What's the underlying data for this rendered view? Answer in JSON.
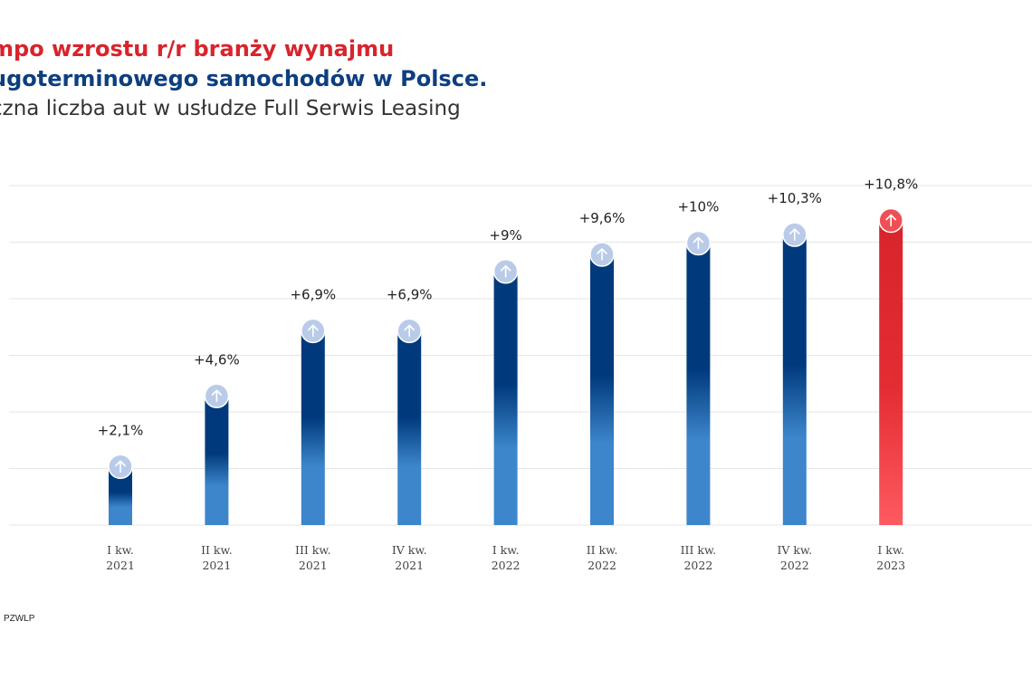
{
  "title_line1": "mpo wzrostu r/r branży wynajmu",
  "title_line2": "ugoterminowego samochodów w Polsce.",
  "subtitle": "czna liczba aut w usłudze Full Serwis Leasing",
  "source": "PZWLP",
  "colors": {
    "navy": "#003a7c",
    "light_blue": "#3d86cc",
    "red": "#e02a30",
    "red_light": "#ff5a60",
    "circle": "#b9cbe8",
    "grid": "#e6e6e6"
  },
  "chart_data": {
    "type": "bar",
    "categories": [
      [
        "I kw.",
        "2021"
      ],
      [
        "II kw.",
        "2021"
      ],
      [
        "III kw.",
        "2021"
      ],
      [
        "IV kw.",
        "2021"
      ],
      [
        "I kw.",
        "2022"
      ],
      [
        "II kw.",
        "2022"
      ],
      [
        "III kw.",
        "2022"
      ],
      [
        "IV kw.",
        "2022"
      ],
      [
        "I kw.",
        "2023"
      ]
    ],
    "values": [
      2.1,
      4.6,
      6.9,
      6.9,
      9.0,
      9.6,
      10.0,
      10.3,
      10.8
    ],
    "labels": [
      "+2,1%",
      "+4,6%",
      "+6,9%",
      "+6,9%",
      "+9%",
      "+9,6%",
      "+10%",
      "+10,3%",
      "+10,8%"
    ],
    "highlight_index": 8,
    "ylim": [
      0,
      12
    ],
    "grid": true,
    "marker_icon": "arrow-up-icon"
  }
}
